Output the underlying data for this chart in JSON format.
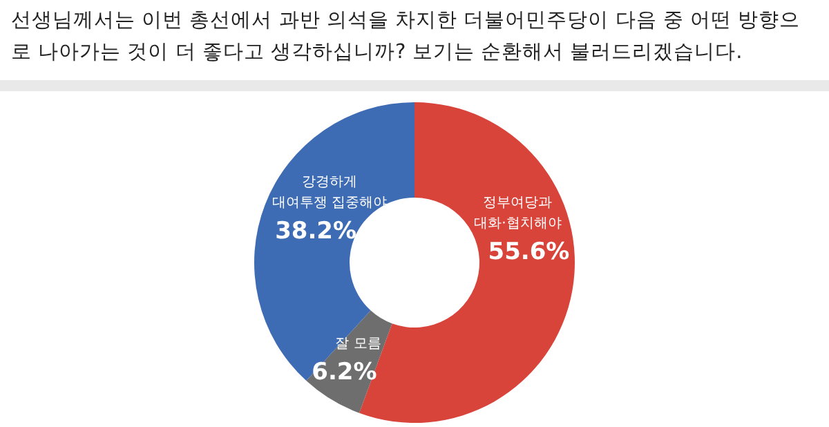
{
  "chart_data": {
    "type": "donut",
    "title": "선생님께서는 이번 총선에서 과반 의석을 차지한 더불어민주당이 다음 중 어떤 방향으로 나아가는 것이 더 좋다고 생각하십니까? 보기는 순환해서 불러드리겠습니다.",
    "categories": [
      "정부여당과 대화·협치해야",
      "잘 모름",
      "강경하게 대여투쟁 집중해야"
    ],
    "values": [
      55.6,
      6.2,
      38.2
    ],
    "colors": [
      "#d8433a",
      "#6e6e6e",
      "#3e6cb4"
    ],
    "value_labels": [
      "55.6%",
      "6.2%",
      "38.2%"
    ],
    "data_labels": true
  }
}
